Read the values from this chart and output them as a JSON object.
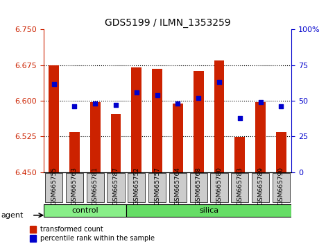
{
  "title": "GDS5199 / ILMN_1353259",
  "samples": [
    "GSM665755",
    "GSM665763",
    "GSM665781",
    "GSM665787",
    "GSM665752",
    "GSM665757",
    "GSM665764",
    "GSM665768",
    "GSM665780",
    "GSM665783",
    "GSM665789",
    "GSM665790"
  ],
  "groups": [
    "control",
    "control",
    "control",
    "control",
    "silica",
    "silica",
    "silica",
    "silica",
    "silica",
    "silica",
    "silica",
    "silica"
  ],
  "bar_values": [
    6.675,
    6.535,
    6.598,
    6.573,
    6.67,
    6.667,
    6.595,
    6.663,
    6.685,
    6.524,
    6.598,
    6.535
  ],
  "dot_values": [
    62,
    46,
    48,
    47,
    56,
    54,
    48,
    52,
    63,
    38,
    49,
    46
  ],
  "ymin": 6.45,
  "ymax": 6.75,
  "yticks": [
    6.45,
    6.525,
    6.6,
    6.675,
    6.75
  ],
  "y2ticks": [
    0,
    25,
    50,
    75,
    100
  ],
  "y2labels": [
    "0",
    "25",
    "50",
    "75",
    "100%"
  ],
  "bar_color": "#cc2200",
  "dot_color": "#0000cc",
  "bar_bottom": 6.45,
  "grid_color": "#000000",
  "bg_color": "#ffffff",
  "control_color": "#88ee88",
  "silica_color": "#66dd66",
  "xticklabel_bg": "#cccccc",
  "agent_label": "agent",
  "control_label": "control",
  "silica_label": "silica",
  "legend_tc": "transformed count",
  "legend_pr": "percentile rank within the sample",
  "left_tick_color": "#cc2200",
  "right_tick_color": "#0000cc"
}
